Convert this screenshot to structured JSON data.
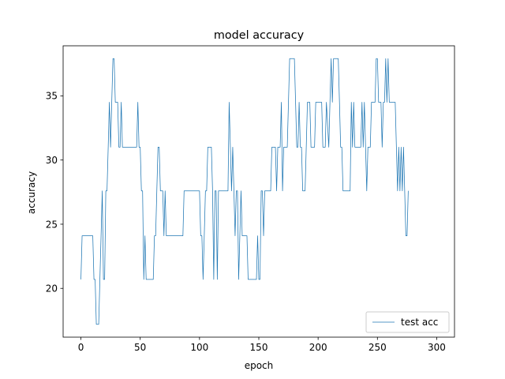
{
  "chart_data": {
    "type": "line",
    "title": "model accuracy",
    "xlabel": "epoch",
    "ylabel": "accuracy",
    "xlim": [
      -15,
      315
    ],
    "ylim": [
      16.2,
      38.9
    ],
    "xticks": [
      0,
      50,
      100,
      150,
      200,
      250,
      300
    ],
    "yticks": [
      20,
      25,
      30,
      35
    ],
    "grid": false,
    "legend": "lower-right",
    "colors": {
      "series": "#1f77b4",
      "axes": "#000000",
      "legend_border": "#cccccc"
    },
    "series": [
      {
        "name": "test acc",
        "points": [
          [
            0,
            20.7
          ],
          [
            1,
            24.1
          ],
          [
            10,
            24.1
          ],
          [
            11,
            20.7
          ],
          [
            12,
            20.7
          ],
          [
            13,
            17.2
          ],
          [
            15,
            17.2
          ],
          [
            16,
            20.7
          ],
          [
            17,
            24.1
          ],
          [
            18,
            27.6
          ],
          [
            19,
            20.7
          ],
          [
            20,
            20.7
          ],
          [
            21,
            27.6
          ],
          [
            22,
            27.6
          ],
          [
            23,
            31.0
          ],
          [
            24,
            34.5
          ],
          [
            25,
            31.0
          ],
          [
            26,
            34.5
          ],
          [
            27,
            37.9
          ],
          [
            28,
            37.9
          ],
          [
            29,
            34.5
          ],
          [
            31,
            34.5
          ],
          [
            32,
            31.0
          ],
          [
            33,
            31.0
          ],
          [
            34,
            34.5
          ],
          [
            35,
            31.0
          ],
          [
            47,
            31.0
          ],
          [
            48,
            34.5
          ],
          [
            49,
            31.0
          ],
          [
            50,
            31.0
          ],
          [
            51,
            27.6
          ],
          [
            52,
            27.6
          ],
          [
            53,
            20.7
          ],
          [
            54,
            24.1
          ],
          [
            55,
            20.7
          ],
          [
            61,
            20.7
          ],
          [
            62,
            24.1
          ],
          [
            63,
            24.1
          ],
          [
            64,
            27.6
          ],
          [
            65,
            31.0
          ],
          [
            66,
            31.0
          ],
          [
            67,
            27.6
          ],
          [
            69,
            27.6
          ],
          [
            70,
            24.1
          ],
          [
            71,
            27.6
          ],
          [
            72,
            24.1
          ],
          [
            86,
            24.1
          ],
          [
            87,
            27.6
          ],
          [
            100,
            27.6
          ],
          [
            101,
            24.1
          ],
          [
            102,
            24.1
          ],
          [
            103,
            20.7
          ],
          [
            104,
            24.1
          ],
          [
            105,
            27.6
          ],
          [
            106,
            27.6
          ],
          [
            107,
            31.0
          ],
          [
            110,
            31.0
          ],
          [
            111,
            27.6
          ],
          [
            112,
            20.7
          ],
          [
            113,
            27.6
          ],
          [
            114,
            27.6
          ],
          [
            115,
            20.7
          ],
          [
            116,
            27.6
          ],
          [
            124,
            27.6
          ],
          [
            125,
            34.5
          ],
          [
            126,
            31.0
          ],
          [
            127,
            27.6
          ],
          [
            128,
            31.0
          ],
          [
            129,
            27.6
          ],
          [
            130,
            24.1
          ],
          [
            131,
            27.6
          ],
          [
            132,
            27.6
          ],
          [
            133,
            20.7
          ],
          [
            134,
            24.1
          ],
          [
            135,
            27.6
          ],
          [
            136,
            24.1
          ],
          [
            140,
            24.1
          ],
          [
            141,
            20.7
          ],
          [
            148,
            20.7
          ],
          [
            149,
            24.1
          ],
          [
            150,
            20.7
          ],
          [
            151,
            20.7
          ],
          [
            152,
            27.6
          ],
          [
            153,
            27.6
          ],
          [
            154,
            24.1
          ],
          [
            155,
            27.6
          ],
          [
            160,
            27.6
          ],
          [
            161,
            31.0
          ],
          [
            164,
            31.0
          ],
          [
            165,
            27.6
          ],
          [
            166,
            31.0
          ],
          [
            168,
            31.0
          ],
          [
            169,
            34.5
          ],
          [
            170,
            27.6
          ],
          [
            171,
            31.0
          ],
          [
            174,
            31.0
          ],
          [
            175,
            34.5
          ],
          [
            176,
            37.9
          ],
          [
            180,
            37.9
          ],
          [
            181,
            34.5
          ],
          [
            182,
            31.0
          ],
          [
            183,
            31.0
          ],
          [
            184,
            34.5
          ],
          [
            185,
            31.0
          ],
          [
            186,
            31.0
          ],
          [
            187,
            27.6
          ],
          [
            189,
            27.6
          ],
          [
            190,
            31.0
          ],
          [
            191,
            34.5
          ],
          [
            193,
            34.5
          ],
          [
            194,
            31.0
          ],
          [
            197,
            31.0
          ],
          [
            198,
            34.5
          ],
          [
            203,
            34.5
          ],
          [
            204,
            31.0
          ],
          [
            206,
            31.0
          ],
          [
            207,
            34.5
          ],
          [
            209,
            31.0
          ],
          [
            210,
            34.5
          ],
          [
            211,
            37.9
          ],
          [
            212,
            34.5
          ],
          [
            213,
            37.9
          ],
          [
            217,
            37.9
          ],
          [
            218,
            34.5
          ],
          [
            219,
            31.0
          ],
          [
            220,
            31.0
          ],
          [
            221,
            27.6
          ],
          [
            227,
            27.6
          ],
          [
            228,
            34.5
          ],
          [
            229,
            31.0
          ],
          [
            230,
            34.5
          ],
          [
            231,
            31.0
          ],
          [
            236,
            31.0
          ],
          [
            237,
            34.5
          ],
          [
            238,
            31.0
          ],
          [
            239,
            34.5
          ],
          [
            240,
            31.0
          ],
          [
            241,
            27.6
          ],
          [
            242,
            31.0
          ],
          [
            244,
            31.0
          ],
          [
            245,
            34.5
          ],
          [
            248,
            34.5
          ],
          [
            249,
            37.9
          ],
          [
            250,
            37.9
          ],
          [
            251,
            34.5
          ],
          [
            253,
            34.5
          ],
          [
            254,
            31.0
          ],
          [
            255,
            34.5
          ],
          [
            256,
            34.5
          ],
          [
            257,
            37.9
          ],
          [
            258,
            34.5
          ],
          [
            259,
            37.9
          ],
          [
            260,
            34.5
          ],
          [
            265,
            34.5
          ],
          [
            266,
            31.0
          ],
          [
            267,
            27.6
          ],
          [
            268,
            31.0
          ],
          [
            269,
            27.6
          ],
          [
            270,
            31.0
          ],
          [
            271,
            27.6
          ],
          [
            272,
            31.0
          ],
          [
            273,
            27.6
          ],
          [
            274,
            24.1
          ],
          [
            275,
            24.1
          ],
          [
            276,
            27.6
          ]
        ]
      }
    ]
  }
}
